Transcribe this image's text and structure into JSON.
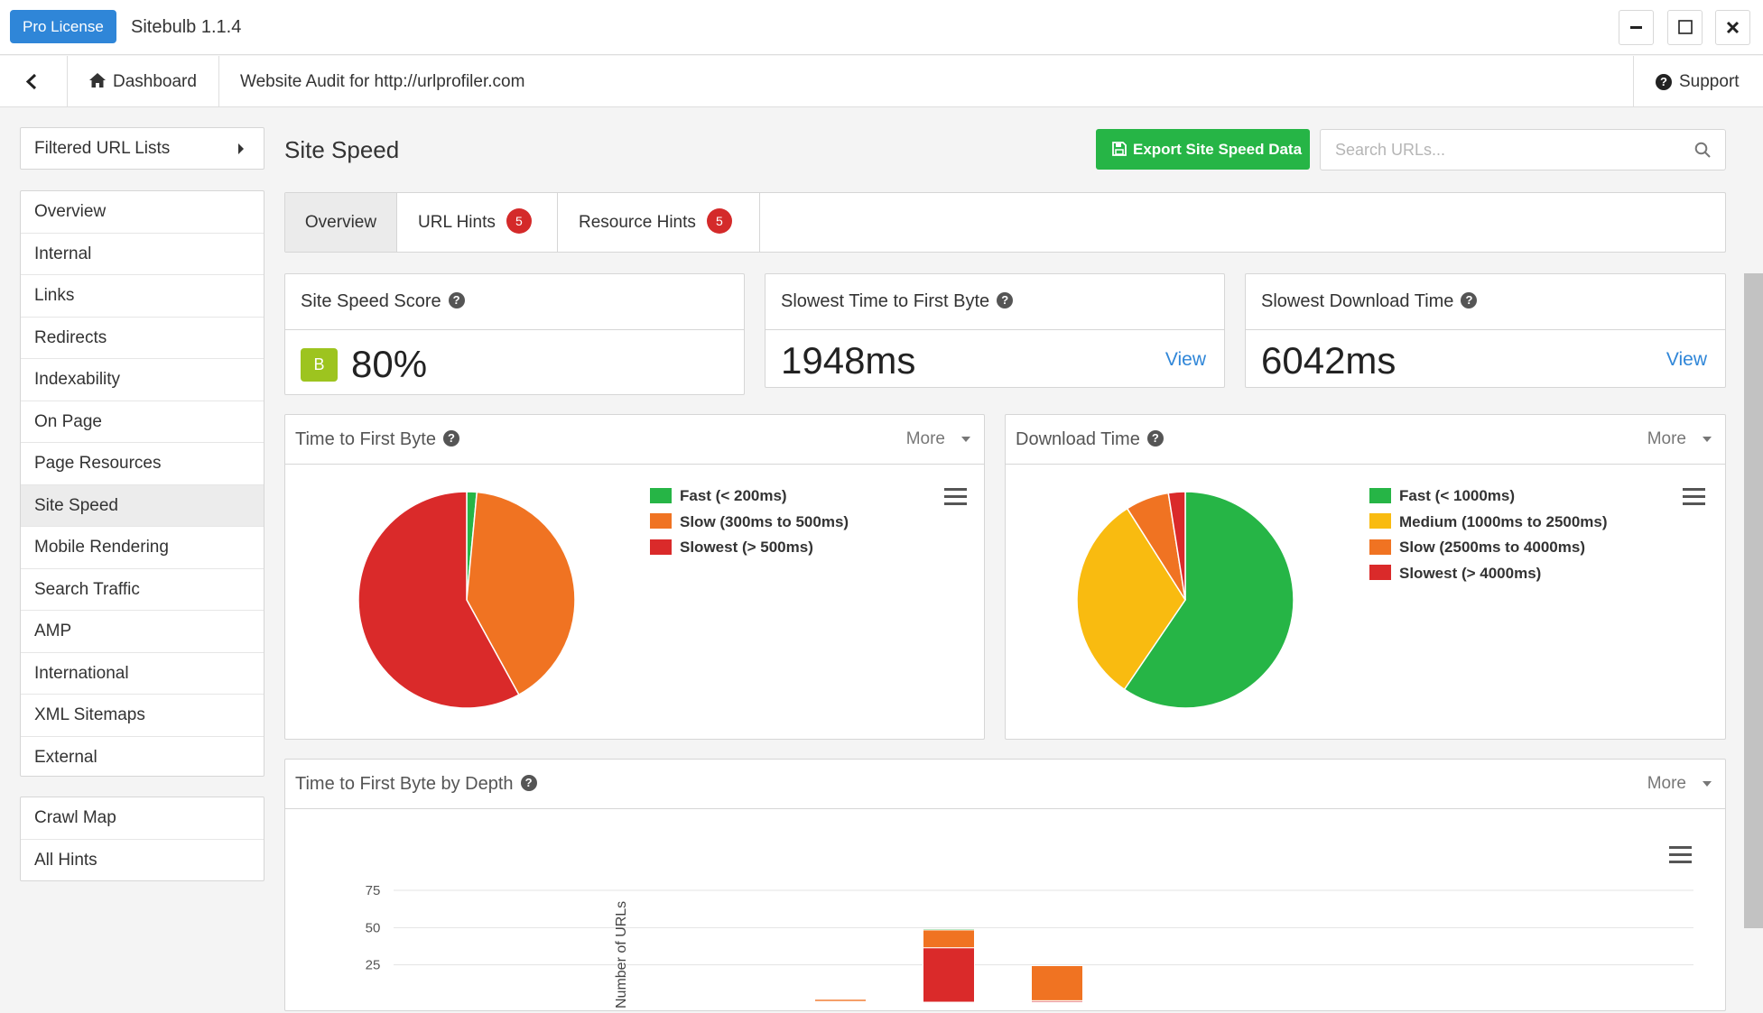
{
  "app": {
    "license_label": "Pro License",
    "title": "Sitebulb 1.1.4"
  },
  "nav": {
    "dashboard_label": "Dashboard",
    "audit_label": "Website Audit for http://urlprofiler.com",
    "support_label": "Support"
  },
  "sidebar": {
    "filter_label": "Filtered URL Lists",
    "items": [
      "Overview",
      "Internal",
      "Links",
      "Redirects",
      "Indexability",
      "On Page",
      "Page Resources",
      "Site Speed",
      "Mobile Rendering",
      "Search Traffic",
      "AMP",
      "International",
      "XML Sitemaps",
      "External"
    ],
    "active_item": "Site Speed",
    "extra_items": [
      "Crawl Map",
      "All Hints"
    ]
  },
  "page": {
    "title": "Site Speed",
    "export_label": "Export Site Speed Data",
    "search_placeholder": "Search URLs..."
  },
  "tabs": [
    {
      "label": "Overview",
      "badge": ""
    },
    {
      "label": "URL Hints",
      "badge": "5"
    },
    {
      "label": "Resource Hints",
      "badge": "5"
    }
  ],
  "stats": {
    "score": {
      "title": "Site Speed Score",
      "grade": "B",
      "value": "80%"
    },
    "ttfb": {
      "title": "Slowest Time to First Byte",
      "value": "1948ms",
      "link": "View"
    },
    "download": {
      "title": "Slowest Download Time",
      "value": "6042ms",
      "link": "View"
    }
  },
  "more_label": "More",
  "colors": {
    "fast": "#26b546",
    "medium": "#f9bb10",
    "slow": "#f07322",
    "slowest": "#da2a2a",
    "accent": "#2f86d8",
    "grade_bg": "#9dc41f"
  },
  "chart_data": [
    {
      "type": "pie",
      "title": "Time to First Byte",
      "slices": [
        {
          "label": "Fast (< 200ms)",
          "value": 1.5,
          "color": "#26b546"
        },
        {
          "label": "Slow (300ms to 500ms)",
          "value": 40.5,
          "color": "#f07322"
        },
        {
          "label": "Slowest (> 500ms)",
          "value": 58.0,
          "color": "#da2a2a"
        }
      ]
    },
    {
      "type": "pie",
      "title": "Download Time",
      "slices": [
        {
          "label": "Fast (< 1000ms)",
          "value": 59.5,
          "color": "#26b546"
        },
        {
          "label": "Medium (1000ms to 2500ms)",
          "value": 31.5,
          "color": "#f9bb10"
        },
        {
          "label": "Slow (2500ms to 4000ms)",
          "value": 6.5,
          "color": "#f07322"
        },
        {
          "label": "Slowest (> 4000ms)",
          "value": 2.5,
          "color": "#da2a2a"
        }
      ]
    },
    {
      "type": "bar",
      "stacked": true,
      "title": "Time to First Byte by Depth",
      "ylabel": "Number of URLs",
      "ylim": [
        0,
        75
      ],
      "yticks": [
        "25",
        "50",
        "75"
      ],
      "groups": [
        {
          "segments": [
            {
              "series": "slowest",
              "value": 0.5
            },
            {
              "series": "slow",
              "value": 1.5
            },
            {
              "series": "fast",
              "value": 0.6
            }
          ]
        },
        {
          "segments": [
            {
              "series": "slowest",
              "value": 36.5
            },
            {
              "series": "slow",
              "value": 12
            },
            {
              "series": "fast",
              "value": 0.8
            }
          ]
        },
        {
          "segments": [
            {
              "series": "slowest",
              "value": 1
            },
            {
              "series": "slow",
              "value": 23.5
            }
          ]
        },
        {
          "segments": [
            {
              "series": "slowest",
              "value": 0
            },
            {
              "series": "slow",
              "value": 1
            }
          ]
        }
      ]
    }
  ]
}
